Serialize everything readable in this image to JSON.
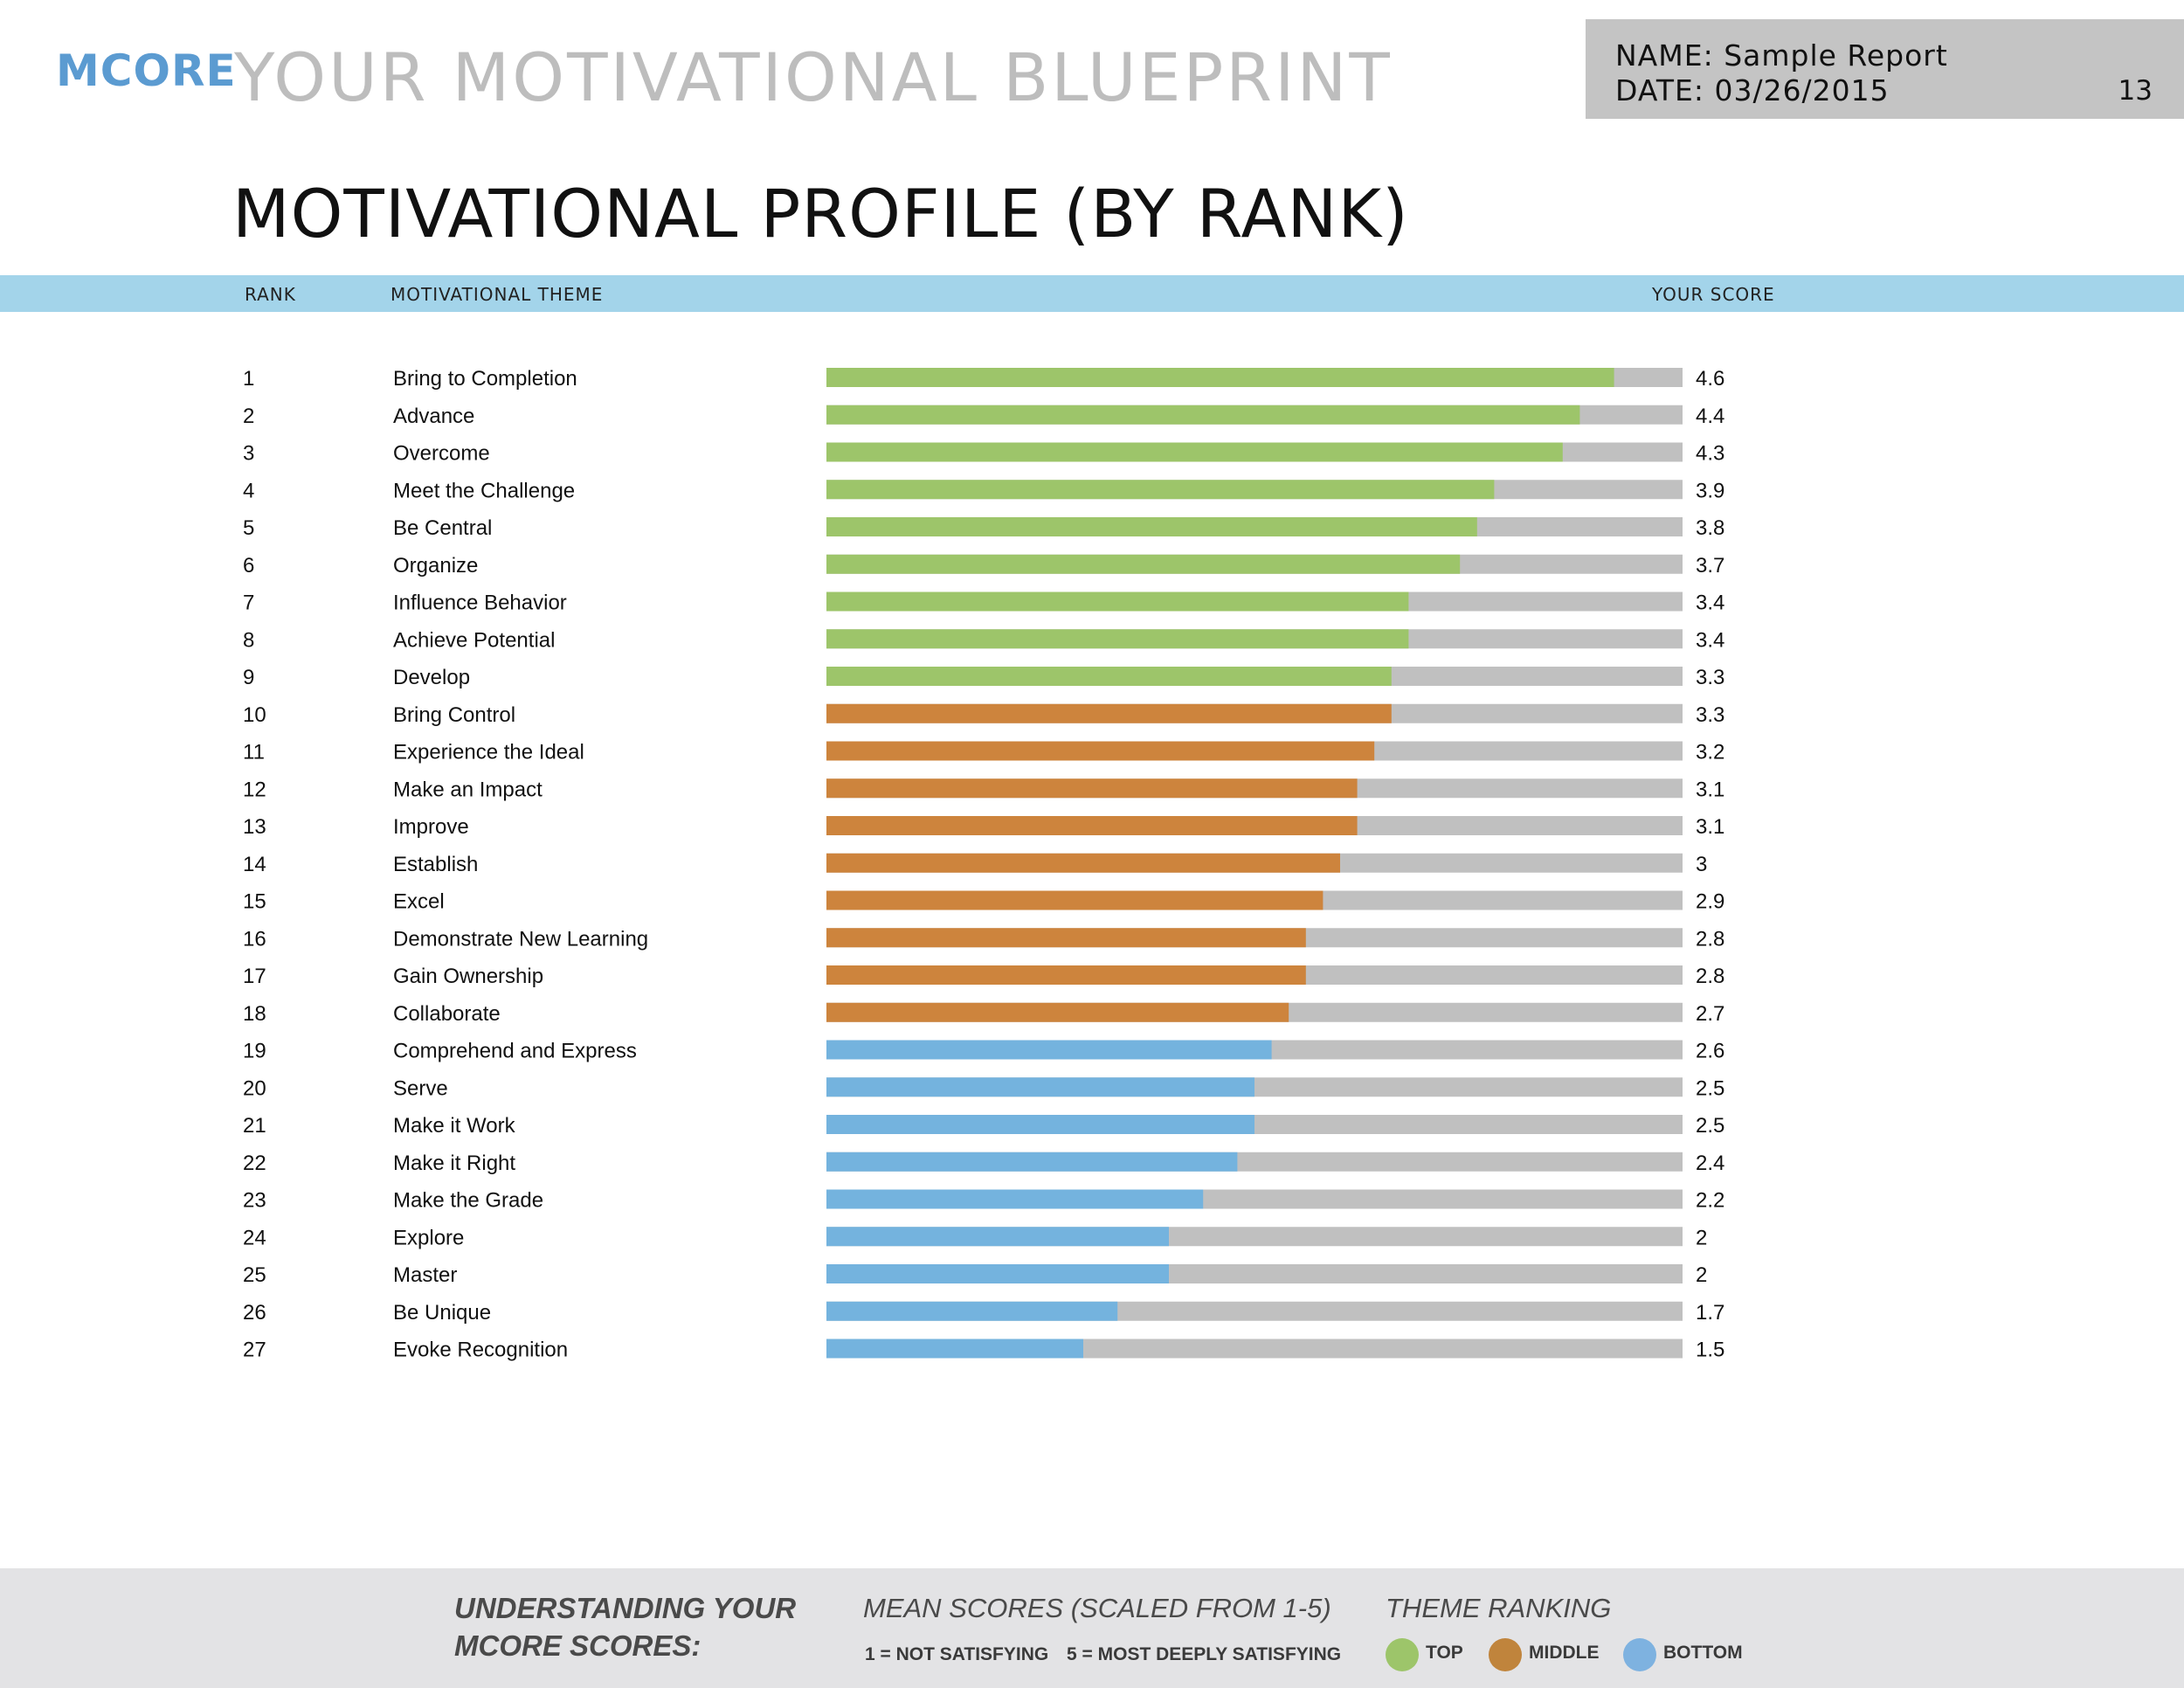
{
  "header": {
    "logo": "MCORE",
    "title": "YOUR MOTIVATIONAL BLUEPRINT",
    "name_line": "NAME: Sample Report",
    "date_line": "DATE: 03/26/2015",
    "page_number": "13"
  },
  "page_heading": "MOTIVATIONAL PROFILE (BY RANK)",
  "columns": {
    "rank": "RANK",
    "theme": "MOTIVATIONAL THEME",
    "score": "YOUR SCORE"
  },
  "colors": {
    "top": "#9dc56a",
    "middle": "#cd843d",
    "bottom": "#74b3de",
    "track": "#c0c0c0",
    "header_band": "#a3d4ea"
  },
  "chart_data": {
    "type": "bar",
    "orientation": "horizontal",
    "xlim": [
      0,
      5
    ],
    "grid": false,
    "series": [
      {
        "name": "YOUR SCORE",
        "values": [
          4.6,
          4.4,
          4.3,
          3.9,
          3.8,
          3.7,
          3.4,
          3.4,
          3.3,
          3.3,
          3.2,
          3.1,
          3.1,
          3,
          2.9,
          2.8,
          2.8,
          2.7,
          2.6,
          2.5,
          2.5,
          2.4,
          2.2,
          2,
          2,
          1.7,
          1.5
        ]
      }
    ],
    "rows": [
      {
        "rank": "1",
        "theme": "Bring to Completion",
        "score": 4.6,
        "label": "4.6",
        "group": "top"
      },
      {
        "rank": "2",
        "theme": "Advance",
        "score": 4.4,
        "label": "4.4",
        "group": "top"
      },
      {
        "rank": "3",
        "theme": "Overcome",
        "score": 4.3,
        "label": "4.3",
        "group": "top"
      },
      {
        "rank": "4",
        "theme": "Meet the Challenge",
        "score": 3.9,
        "label": "3.9",
        "group": "top"
      },
      {
        "rank": "5",
        "theme": "Be Central",
        "score": 3.8,
        "label": "3.8",
        "group": "top"
      },
      {
        "rank": "6",
        "theme": "Organize",
        "score": 3.7,
        "label": "3.7",
        "group": "top"
      },
      {
        "rank": "7",
        "theme": "Influence Behavior",
        "score": 3.4,
        "label": "3.4",
        "group": "top"
      },
      {
        "rank": "8",
        "theme": "Achieve Potential",
        "score": 3.4,
        "label": "3.4",
        "group": "top"
      },
      {
        "rank": "9",
        "theme": "Develop",
        "score": 3.3,
        "label": "3.3",
        "group": "top"
      },
      {
        "rank": "10",
        "theme": "Bring Control",
        "score": 3.3,
        "label": "3.3",
        "group": "middle"
      },
      {
        "rank": "11",
        "theme": "Experience the Ideal",
        "score": 3.2,
        "label": "3.2",
        "group": "middle"
      },
      {
        "rank": "12",
        "theme": "Make an Impact",
        "score": 3.1,
        "label": "3.1",
        "group": "middle"
      },
      {
        "rank": "13",
        "theme": "Improve",
        "score": 3.1,
        "label": "3.1",
        "group": "middle"
      },
      {
        "rank": "14",
        "theme": "Establish",
        "score": 3,
        "label": "3",
        "group": "middle"
      },
      {
        "rank": "15",
        "theme": "Excel",
        "score": 2.9,
        "label": "2.9",
        "group": "middle"
      },
      {
        "rank": "16",
        "theme": "Demonstrate New Learning",
        "score": 2.8,
        "label": "2.8",
        "group": "middle"
      },
      {
        "rank": "17",
        "theme": "Gain Ownership",
        "score": 2.8,
        "label": "2.8",
        "group": "middle"
      },
      {
        "rank": "18",
        "theme": "Collaborate",
        "score": 2.7,
        "label": "2.7",
        "group": "middle"
      },
      {
        "rank": "19",
        "theme": "Comprehend and Express",
        "score": 2.6,
        "label": "2.6",
        "group": "bottom"
      },
      {
        "rank": "20",
        "theme": "Serve",
        "score": 2.5,
        "label": "2.5",
        "group": "bottom"
      },
      {
        "rank": "21",
        "theme": "Make it Work",
        "score": 2.5,
        "label": "2.5",
        "group": "bottom"
      },
      {
        "rank": "22",
        "theme": "Make it Right",
        "score": 2.4,
        "label": "2.4",
        "group": "bottom"
      },
      {
        "rank": "23",
        "theme": "Make the Grade",
        "score": 2.2,
        "label": "2.2",
        "group": "bottom"
      },
      {
        "rank": "24",
        "theme": "Explore",
        "score": 2,
        "label": "2",
        "group": "bottom"
      },
      {
        "rank": "25",
        "theme": "Master",
        "score": 2,
        "label": "2",
        "group": "bottom"
      },
      {
        "rank": "26",
        "theme": "Be Unique",
        "score": 1.7,
        "label": "1.7",
        "group": "bottom"
      },
      {
        "rank": "27",
        "theme": "Evoke Recognition",
        "score": 1.5,
        "label": "1.5",
        "group": "bottom"
      }
    ]
  },
  "footer": {
    "understanding_line1": "UNDERSTANDING YOUR",
    "understanding_line2": "MCORE SCORES:",
    "mean_scores_title": "MEAN SCORES (SCALED FROM 1-5)",
    "scale_low": "1 = NOT SATISFYING",
    "scale_high": "5 = MOST DEEPLY SATISFYING",
    "ranking_title": "THEME RANKING",
    "legend_top": "TOP",
    "legend_middle": "MIDDLE",
    "legend_bottom": "BOTTOM"
  }
}
